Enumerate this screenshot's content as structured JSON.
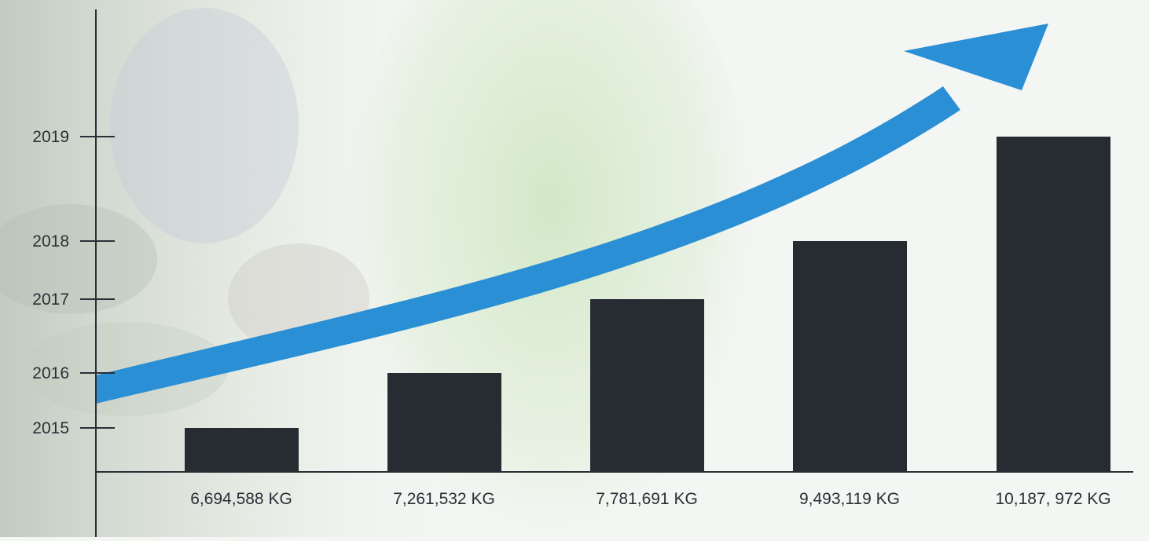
{
  "chart_data": {
    "type": "bar",
    "categories": [
      "6,694,588 KG",
      "7,261,532 KG",
      "7,781,691 KG",
      "9,493,119 KG",
      "10,187, 972 KG"
    ],
    "y_ticks": [
      "2015",
      "2016",
      "2017",
      "2018",
      "2019"
    ],
    "values": [
      6694588,
      7261532,
      7781691,
      9493119,
      10187972
    ],
    "bar_years": [
      "2015",
      "2016",
      "2017",
      "2018",
      "2019"
    ],
    "title": "",
    "xlabel": "",
    "ylabel": "",
    "grid": false,
    "legend": "none",
    "trend_arrow": true,
    "colors": {
      "bar": "#272c33",
      "axis": "#2a2f36",
      "arrow": "#2a8fd4",
      "background": "#f4f6f4",
      "photo_tint": "#c9d3c6",
      "green_tint": "#cfe3c4"
    }
  }
}
